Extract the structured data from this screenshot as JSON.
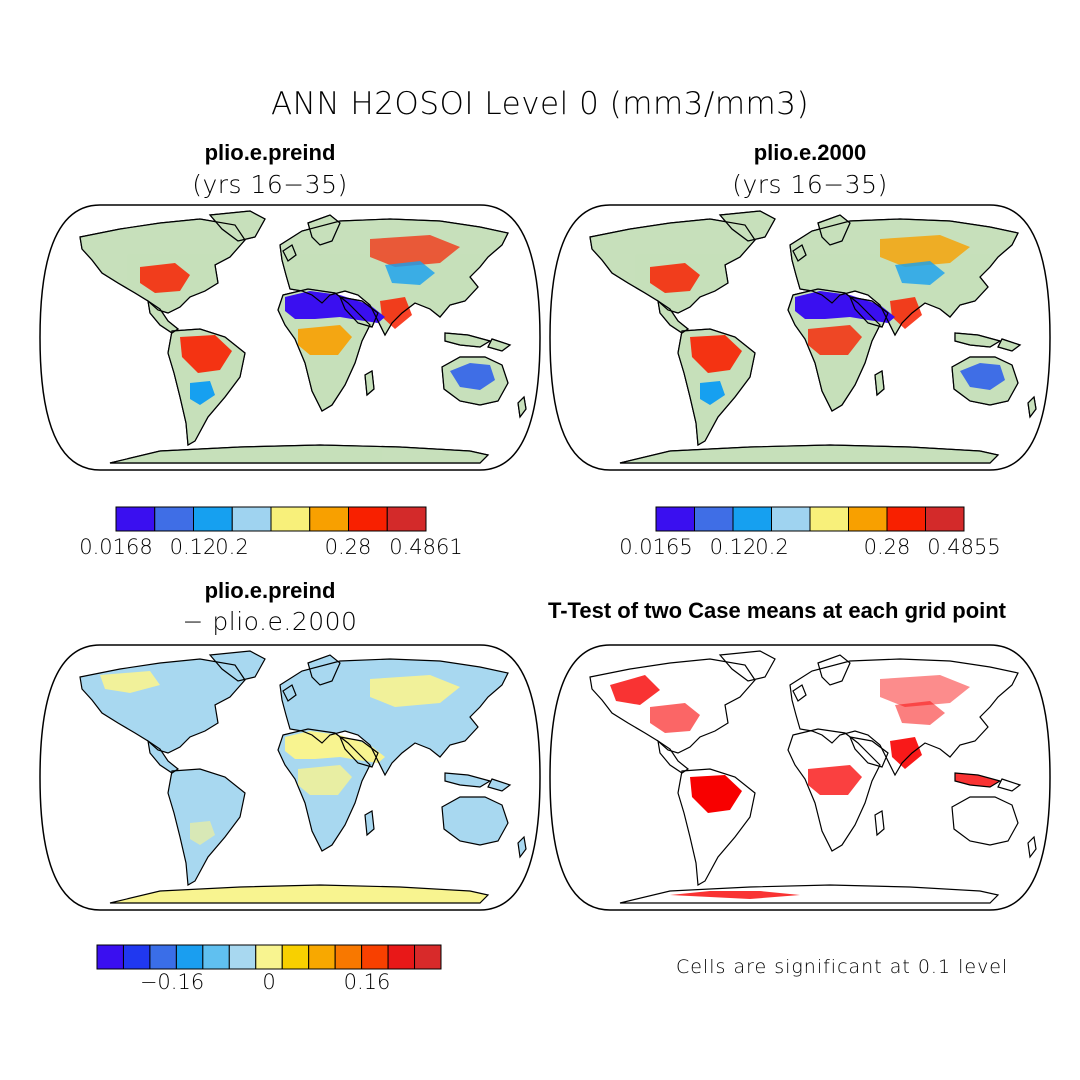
{
  "title": "ANN H2OSOI Level 0 (mm3/mm3)",
  "panels": {
    "top_left": {
      "title": "plio.e.preind",
      "subtitle": "(yrs 16−35)"
    },
    "top_right": {
      "title": "plio.e.2000",
      "subtitle": "(yrs 16−35)"
    },
    "bottom_left": {
      "title": "plio.e.preind",
      "subtitle": "− plio.e.2000"
    },
    "bottom_right": {
      "title": "T-Test of two Case means at each grid point",
      "note": "Cells are significant at 0.1 level"
    }
  },
  "colorbars": {
    "top_left": {
      "colors": [
        "#3a0ff0",
        "#3f6ee6",
        "#16a0f0",
        "#9fd3f0",
        "#f8f07a",
        "#f8a000",
        "#f82000",
        "#d32a2a"
      ],
      "ticks": [
        "0.0168",
        "0.12",
        "0.2",
        "0.28",
        "0.4861"
      ]
    },
    "top_right": {
      "colors": [
        "#3a0ff0",
        "#3f6ee6",
        "#16a0f0",
        "#9fd3f0",
        "#f8f07a",
        "#f8a000",
        "#f82000",
        "#d32a2a"
      ],
      "ticks": [
        "0.0165",
        "0.12",
        "0.2",
        "0.28",
        "0.4855"
      ]
    },
    "bottom_left": {
      "colors": [
        "#3a0ff0",
        "#2038f0",
        "#3a6ee8",
        "#1a9ef0",
        "#60c0f0",
        "#a8d8f0",
        "#f8f490",
        "#f8d000",
        "#f8a800",
        "#f87800",
        "#f84000",
        "#e81818",
        "#d82a2a"
      ],
      "ticks": [
        "−0.16",
        "0",
        "0.16"
      ]
    }
  },
  "chart_data": {
    "type": "map",
    "variable": "H2OSOI",
    "level": "0",
    "units": "mm3/mm3",
    "season": "ANN",
    "significance_level": "0.1",
    "ranges": {
      "plio.e.preind": [
        0.0168,
        0.4861
      ],
      "plio.e.2000": [
        0.0165,
        0.4855
      ]
    }
  }
}
